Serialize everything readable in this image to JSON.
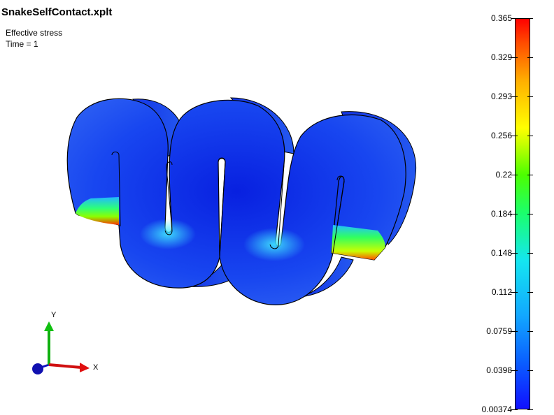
{
  "window": {
    "title": "SnakeSelfContact.xplt"
  },
  "info": {
    "variable": "Effective stress",
    "time": "Time = 1"
  },
  "triad": {
    "x_label": "X",
    "y_label": "Y"
  },
  "legend": {
    "ticks": [
      "0.365",
      "0.329",
      "0.293",
      "0.256",
      "0.22",
      "0.184",
      "0.148",
      "0.112",
      "0.0759",
      "0.0398",
      "0.00374"
    ],
    "min": 0.00374,
    "max": 0.365
  },
  "colors": {
    "model_base": "#1a3fe8",
    "model_dark": "#0d2bd6",
    "stress_high": "#ff2000",
    "stress_mid": "#33ff00",
    "x_axis": "#e01010",
    "y_axis": "#10c010",
    "z_axis": "#1010c0"
  }
}
